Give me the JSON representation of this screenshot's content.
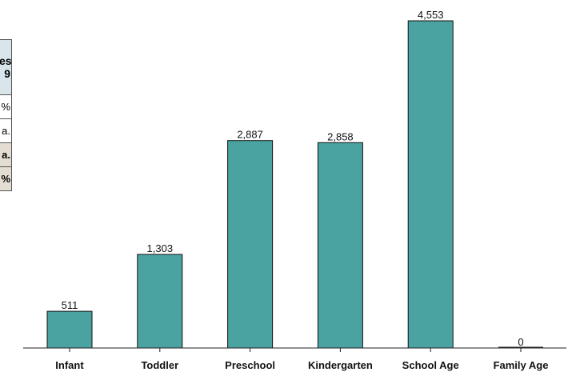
{
  "chart_data": {
    "type": "bar",
    "categories": [
      "Infant",
      "Toddler",
      "Preschool",
      "Kindergarten",
      "School Age",
      "Family Age"
    ],
    "values": [
      511,
      1303,
      2887,
      2858,
      4553,
      0
    ],
    "value_labels": [
      "511",
      "1,303",
      "2,887",
      "2,858",
      "4,553",
      "0"
    ],
    "title": "",
    "xlabel": "",
    "ylabel": "",
    "ylim": [
      0,
      4553
    ],
    "grid": false,
    "bar_color": "#4aa3a0",
    "bar_edge_color": "#111111"
  },
  "side_table": {
    "header": "es\n9",
    "rows": [
      {
        "text": "%",
        "style": "plain"
      },
      {
        "text": "a.",
        "style": "plain"
      },
      {
        "text": "a.",
        "style": "shaded"
      },
      {
        "text": "%",
        "style": "shaded"
      }
    ],
    "header_bg": "#d8e6ec",
    "shaded_bg": "#e4ddd2"
  }
}
